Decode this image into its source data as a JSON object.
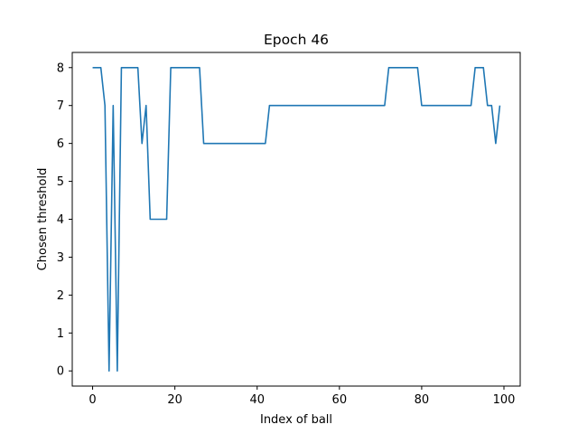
{
  "chart_data": {
    "type": "line",
    "title": "Epoch 46",
    "xlabel": "Index of ball",
    "ylabel": "Chosen threshold",
    "xlim": [
      -4.95,
      103.95
    ],
    "ylim": [
      -0.4,
      8.4
    ],
    "xticks": [
      0,
      20,
      40,
      60,
      80,
      100
    ],
    "yticks": [
      0,
      1,
      2,
      3,
      4,
      5,
      6,
      7,
      8
    ],
    "grid": false,
    "series": [
      {
        "color": "#1f77b4",
        "x": [
          0,
          1,
          2,
          3,
          4,
          5,
          6,
          7,
          8,
          9,
          10,
          11,
          12,
          13,
          14,
          15,
          16,
          17,
          18,
          19,
          20,
          21,
          22,
          23,
          24,
          25,
          26,
          27,
          28,
          29,
          30,
          31,
          32,
          33,
          34,
          35,
          36,
          37,
          38,
          39,
          40,
          41,
          42,
          43,
          44,
          45,
          46,
          47,
          48,
          49,
          50,
          51,
          52,
          53,
          54,
          55,
          56,
          57,
          58,
          59,
          60,
          61,
          62,
          63,
          64,
          65,
          66,
          67,
          68,
          69,
          70,
          71,
          72,
          73,
          74,
          75,
          76,
          77,
          78,
          79,
          80,
          81,
          82,
          83,
          84,
          85,
          86,
          87,
          88,
          89,
          90,
          91,
          92,
          93,
          94,
          95,
          96,
          97,
          98,
          99
        ],
        "values": [
          8,
          8,
          8,
          7,
          0,
          7,
          0,
          8,
          8,
          8,
          8,
          8,
          6,
          7,
          4,
          4,
          4,
          4,
          4,
          8,
          8,
          8,
          8,
          8,
          8,
          8,
          8,
          6,
          6,
          6,
          6,
          6,
          6,
          6,
          6,
          6,
          6,
          6,
          6,
          6,
          6,
          6,
          6,
          7,
          7,
          7,
          7,
          7,
          7,
          7,
          7,
          7,
          7,
          7,
          7,
          7,
          7,
          7,
          7,
          7,
          7,
          7,
          7,
          7,
          7,
          7,
          7,
          7,
          7,
          7,
          7,
          7,
          8,
          8,
          8,
          8,
          8,
          8,
          8,
          8,
          7,
          7,
          7,
          7,
          7,
          7,
          7,
          7,
          7,
          7,
          7,
          7,
          7,
          8,
          8,
          8,
          7,
          7,
          6,
          7
        ]
      }
    ]
  }
}
